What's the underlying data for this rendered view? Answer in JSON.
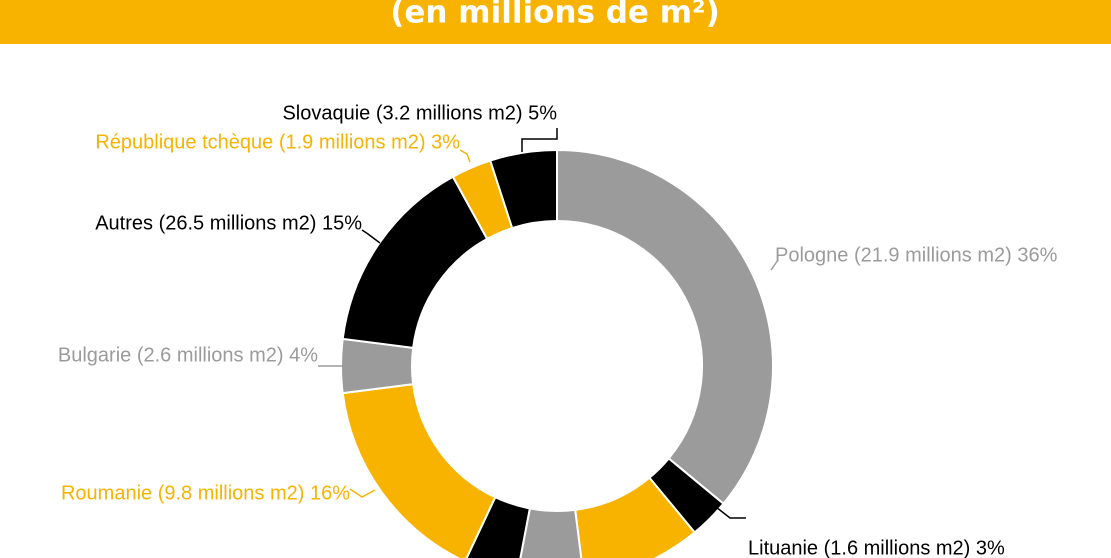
{
  "chart_data": {
    "type": "donut",
    "title": "(en millions de m²)",
    "categories": [
      "Pologne (21.9 millions m2) 36%",
      "Lituanie (1.6 millions m2) 3%",
      null,
      null,
      null,
      "Roumanie (9.8 millions m2) 16%",
      "Bulgarie (2.6 millions m2) 4%",
      "Autres (26.5 millions m2) 15%",
      "République tchèque (1.9 millions m2) 3%",
      "Slovaquie (3.2 millions m2) 5%"
    ],
    "values": [
      36,
      3,
      9,
      5,
      4,
      16,
      4,
      15,
      3,
      5
    ],
    "colors": [
      "#9b9b9b",
      "#000000",
      "#f8b300",
      "#9b9b9b",
      "#000000",
      "#f8b300",
      "#9b9b9b",
      "#000000",
      "#f8b300",
      "#000000"
    ],
    "label_colors": [
      "#9b9b9b",
      "#000000",
      null,
      null,
      null,
      "#f8b300",
      "#9b9b9b",
      "#000000",
      "#f8b300",
      "#000000"
    ]
  }
}
